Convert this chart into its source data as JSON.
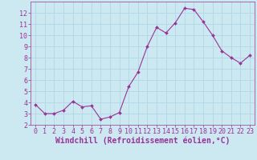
{
  "x": [
    0,
    1,
    2,
    3,
    4,
    5,
    6,
    7,
    8,
    9,
    10,
    11,
    12,
    13,
    14,
    15,
    16,
    17,
    18,
    19,
    20,
    21,
    22,
    23
  ],
  "y": [
    3.8,
    3.0,
    3.0,
    3.3,
    4.1,
    3.6,
    3.7,
    2.5,
    2.7,
    3.1,
    5.4,
    6.7,
    9.0,
    10.7,
    10.2,
    11.1,
    12.4,
    12.3,
    11.2,
    10.0,
    8.6,
    8.0,
    7.5,
    8.2
  ],
  "line_color": "#993399",
  "marker_color": "#993399",
  "bg_color": "#cce8f0",
  "grid_color": "#b0d8e8",
  "xlabel": "Windchill (Refroidissement éolien,°C)",
  "ylabel": "",
  "title": "",
  "xlim": [
    -0.5,
    23.5
  ],
  "ylim": [
    2,
    13
  ],
  "yticks": [
    2,
    3,
    4,
    5,
    6,
    7,
    8,
    9,
    10,
    11,
    12
  ],
  "xticks": [
    0,
    1,
    2,
    3,
    4,
    5,
    6,
    7,
    8,
    9,
    10,
    11,
    12,
    13,
    14,
    15,
    16,
    17,
    18,
    19,
    20,
    21,
    22,
    23
  ],
  "tick_color": "#993399",
  "label_color": "#993399",
  "font_size": 6,
  "xlabel_fontsize": 7
}
